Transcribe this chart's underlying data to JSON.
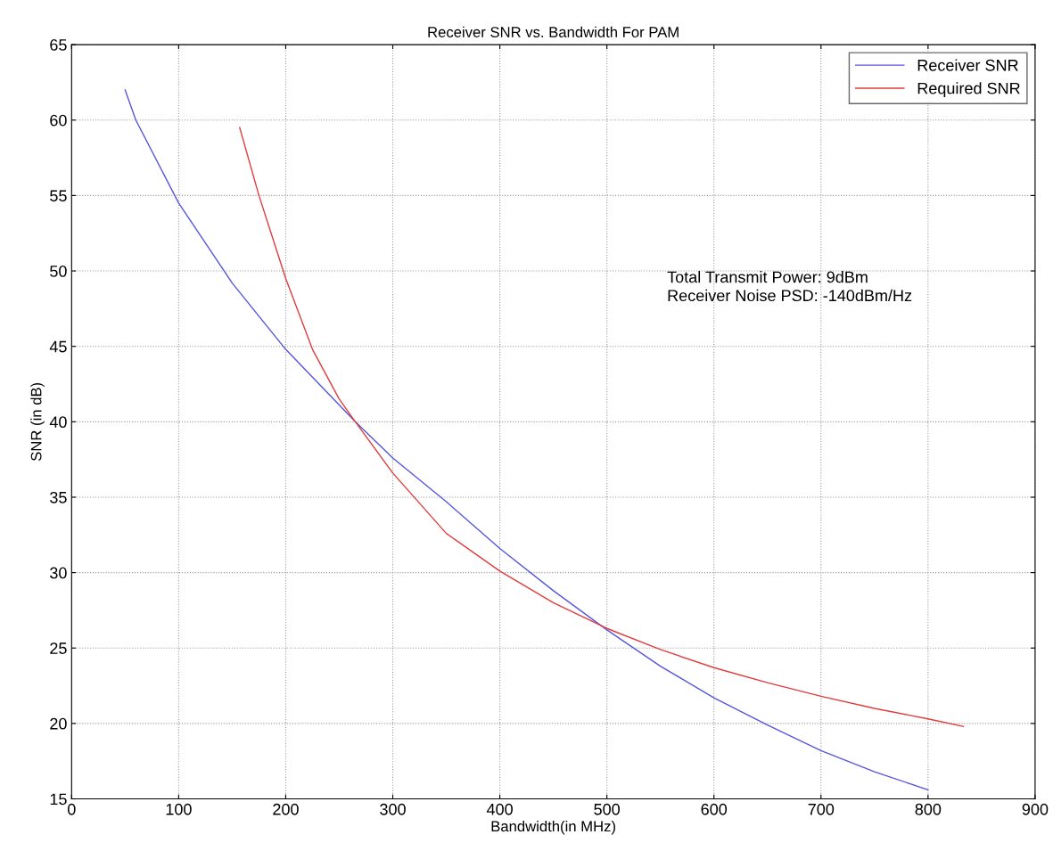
{
  "chart_data": {
    "type": "line",
    "title": "Receiver SNR vs. Bandwidth For PAM",
    "xlabel": "Bandwidth(in MHz)",
    "ylabel": "SNR (in dB)",
    "xlim": [
      0,
      900
    ],
    "xticks": [
      0,
      100,
      200,
      300,
      400,
      500,
      600,
      700,
      800,
      900
    ],
    "ylim": [
      15,
      65
    ],
    "yticks": [
      15,
      20,
      25,
      30,
      35,
      40,
      45,
      50,
      55,
      60,
      65
    ],
    "grid": true,
    "legend": "top right",
    "line_style": "solid",
    "marker": "none",
    "annotations": [
      "Total Transmit Power: 9dBm\nReceiver Noise PSD: -140dBm/Hz"
    ],
    "series": [
      {
        "name": "Receiver SNR",
        "color": "#5555dd",
        "x": [
          50,
          60,
          100,
          150,
          200,
          265,
          300,
          350,
          400,
          450,
          500,
          550,
          600,
          650,
          700,
          750,
          800
        ],
        "values": [
          62,
          60,
          54.5,
          49.2,
          44.8,
          40,
          37.6,
          34.7,
          31.6,
          28.8,
          26.2,
          23.8,
          21.7,
          19.9,
          18.2,
          16.8,
          15.6
        ]
      },
      {
        "name": "Required SNR",
        "color": "#e03c3c",
        "x": [
          157,
          175,
          200,
          225,
          250,
          265,
          300,
          350,
          400,
          450,
          500,
          550,
          600,
          650,
          700,
          750,
          800,
          833
        ],
        "values": [
          59.5,
          55,
          49.5,
          44.8,
          41.5,
          40,
          36.6,
          32.6,
          30.1,
          28,
          26.3,
          24.9,
          23.7,
          22.7,
          21.8,
          21,
          20.3,
          19.8
        ]
      }
    ]
  }
}
